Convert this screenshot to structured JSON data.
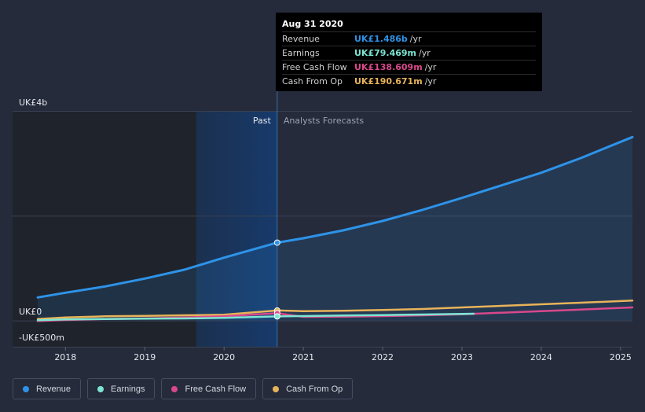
{
  "tooltip": {
    "date": "Aug 31 2020",
    "rows": [
      {
        "label": "Revenue",
        "value": "UK£1.486b",
        "unit": "/yr",
        "color": "#2e93e8"
      },
      {
        "label": "Earnings",
        "value": "UK£79.469m",
        "unit": "/yr",
        "color": "#7ce5d3"
      },
      {
        "label": "Free Cash Flow",
        "value": "UK£138.609m",
        "unit": "/yr",
        "color": "#d9488b"
      },
      {
        "label": "Cash From Op",
        "value": "UK£190.671m",
        "unit": "/yr",
        "color": "#e8b35a"
      }
    ]
  },
  "chart_data": {
    "type": "line",
    "title": "",
    "y_unit_labels": {
      "top": "UK£4b",
      "zero": "UK£0",
      "bottom": "-UK£500m"
    },
    "ylim": [
      -500,
      4000
    ],
    "xlim": [
      2017.65,
      2025.15
    ],
    "x_ticks": [
      "2018",
      "2019",
      "2020",
      "2021",
      "2022",
      "2023",
      "2024",
      "2025"
    ],
    "past_label": "Past",
    "forecast_label": "Analysts Forecasts",
    "past_end": 2020.67,
    "highlight_start": 2019.65,
    "series": [
      {
        "name": "Revenue",
        "color": "#2e93e8",
        "area": true,
        "points": [
          [
            2017.65,
            440
          ],
          [
            2018.0,
            530
          ],
          [
            2018.5,
            650
          ],
          [
            2019.0,
            800
          ],
          [
            2019.5,
            970
          ],
          [
            2020.0,
            1200
          ],
          [
            2020.67,
            1486
          ],
          [
            2021.0,
            1570
          ],
          [
            2021.5,
            1720
          ],
          [
            2022.0,
            1900
          ],
          [
            2022.5,
            2110
          ],
          [
            2023.0,
            2340
          ],
          [
            2023.5,
            2580
          ],
          [
            2024.0,
            2820
          ],
          [
            2024.5,
            3100
          ],
          [
            2025.15,
            3500
          ]
        ]
      },
      {
        "name": "Earnings",
        "color": "#7ce5d3",
        "points": [
          [
            2017.65,
            5
          ],
          [
            2018.0,
            20
          ],
          [
            2018.5,
            30
          ],
          [
            2019.0,
            35
          ],
          [
            2019.5,
            40
          ],
          [
            2020.0,
            50
          ],
          [
            2020.67,
            79
          ],
          [
            2021.0,
            85
          ],
          [
            2021.5,
            95
          ],
          [
            2022.0,
            105
          ],
          [
            2022.5,
            115
          ],
          [
            2023.0,
            125
          ],
          [
            2023.15,
            130
          ]
        ]
      },
      {
        "name": "Free Cash Flow",
        "color": "#d9488b",
        "points": [
          [
            2017.65,
            -10
          ],
          [
            2018.0,
            10
          ],
          [
            2018.5,
            30
          ],
          [
            2019.0,
            40
          ],
          [
            2019.5,
            60
          ],
          [
            2020.0,
            80
          ],
          [
            2020.67,
            139
          ],
          [
            2021.0,
            70
          ],
          [
            2021.5,
            75
          ],
          [
            2022.0,
            85
          ],
          [
            2022.5,
            100
          ],
          [
            2023.0,
            120
          ],
          [
            2023.5,
            150
          ],
          [
            2024.0,
            180
          ],
          [
            2024.5,
            210
          ],
          [
            2025.15,
            250
          ]
        ]
      },
      {
        "name": "Cash From Op",
        "color": "#e8b35a",
        "points": [
          [
            2017.65,
            30
          ],
          [
            2018.0,
            60
          ],
          [
            2018.5,
            80
          ],
          [
            2019.0,
            90
          ],
          [
            2019.5,
            100
          ],
          [
            2020.0,
            110
          ],
          [
            2020.67,
            191
          ],
          [
            2021.0,
            180
          ],
          [
            2021.5,
            185
          ],
          [
            2022.0,
            200
          ],
          [
            2022.5,
            220
          ],
          [
            2023.0,
            250
          ],
          [
            2023.5,
            280
          ],
          [
            2024.0,
            310
          ],
          [
            2024.5,
            340
          ],
          [
            2025.15,
            380
          ]
        ]
      }
    ]
  },
  "legend": [
    {
      "label": "Revenue",
      "color": "#2e93e8"
    },
    {
      "label": "Earnings",
      "color": "#7ce5d3"
    },
    {
      "label": "Free Cash Flow",
      "color": "#d9488b"
    },
    {
      "label": "Cash From Op",
      "color": "#e8b35a"
    }
  ]
}
